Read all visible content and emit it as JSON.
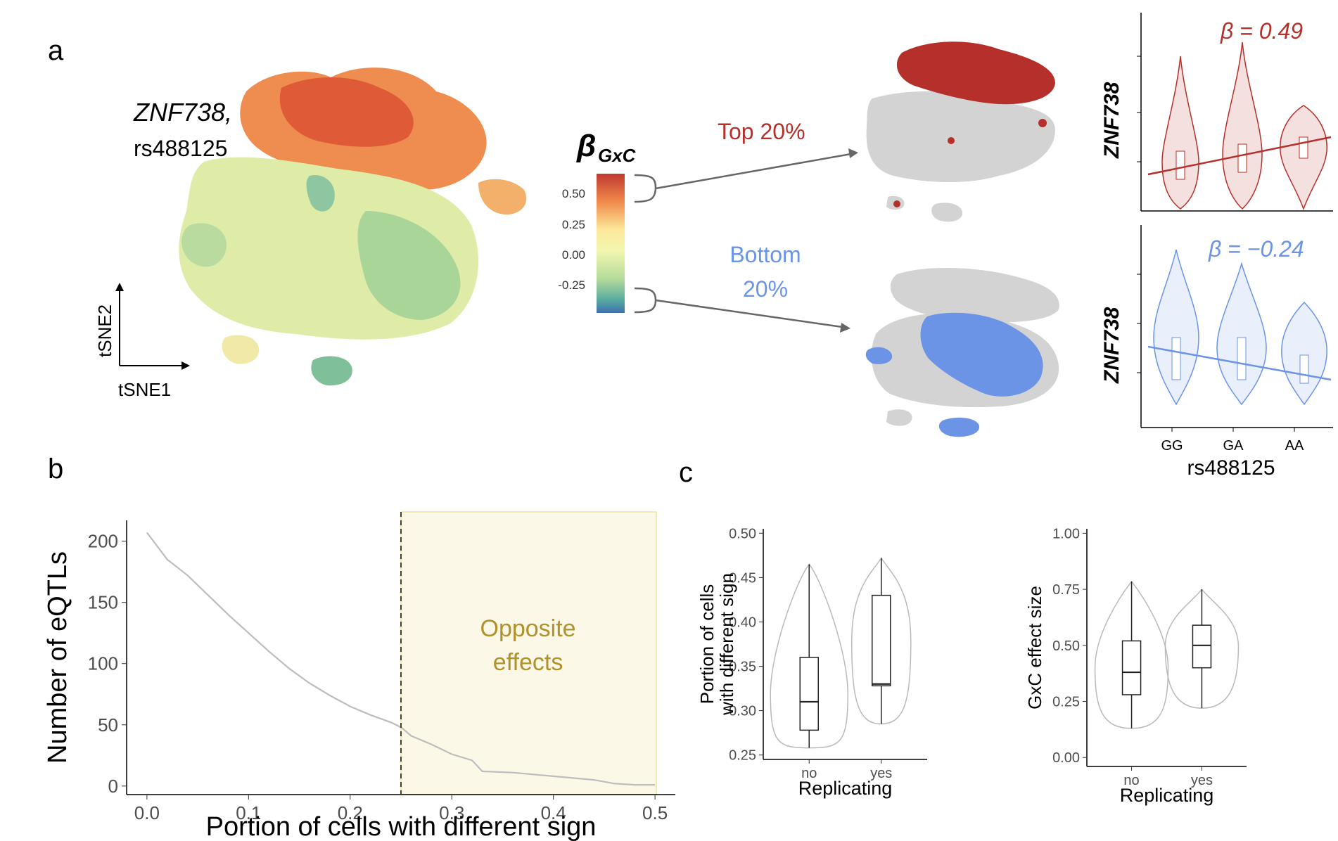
{
  "panel_labels": {
    "a": "a",
    "b": "b",
    "c": "c"
  },
  "panel_a": {
    "gene": "ZNF738,",
    "snp": "rs488125",
    "axis_x": "tSNE1",
    "axis_y": "tSNE2",
    "colorbar_symbol": "β",
    "colorbar_subscript": "GxC",
    "colorbar_ticks": [
      "0.50",
      "0.25",
      "0.00",
      "-0.25"
    ],
    "top_label": "Top 20%",
    "bottom_label_line1": "Bottom",
    "bottom_label_line2": "20%",
    "violin_top_ylabel": "ZNF738",
    "violin_bottom_ylabel": "ZNF738",
    "violin_top_beta": "β = 0.49",
    "violin_bottom_beta": "β = −0.24",
    "genotypes": [
      "GG",
      "GA",
      "AA"
    ],
    "violin_xlabel": "rs488125",
    "colors": {
      "top": "#b5302a",
      "bottom": "#6b93e6",
      "grey": "#cfcfcf"
    }
  },
  "panel_b": {
    "annotation_line1": "Opposite",
    "annotation_line2": "effects",
    "annotation_color": "#b0912a",
    "highlight_fill": "#fbf8e8"
  },
  "panel_c": {
    "left_ylabel_line1": "Portion of cells",
    "left_ylabel_line2": "with different sign",
    "right_ylabel": "GxC effect size",
    "xlabel": "Replicating"
  },
  "chart_data": [
    {
      "type": "line",
      "title": "",
      "xlabel": "Portion of cells with different sign",
      "ylabel": "Number of eQTLs",
      "xlim": [
        -0.02,
        0.52
      ],
      "ylim": [
        -7,
        217
      ],
      "xticks": [
        "0.0",
        "0.1",
        "0.2",
        "0.3",
        "0.4",
        "0.5"
      ],
      "yticks": [
        "0",
        "50",
        "100",
        "150",
        "200"
      ],
      "x": [
        0.0,
        0.02,
        0.04,
        0.06,
        0.08,
        0.1,
        0.12,
        0.14,
        0.16,
        0.18,
        0.2,
        0.22,
        0.24,
        0.25,
        0.26,
        0.28,
        0.3,
        0.32,
        0.33,
        0.36,
        0.4,
        0.44,
        0.46,
        0.48,
        0.5
      ],
      "y": [
        207,
        185,
        172,
        156,
        140,
        125,
        110,
        96,
        84,
        74,
        65,
        58,
        52,
        48,
        41,
        34,
        26,
        21,
        12,
        11,
        8,
        5,
        2,
        1,
        1
      ],
      "threshold": 0.25,
      "shaded_region": [
        0.25,
        0.5
      ],
      "grid": false
    },
    {
      "type": "box",
      "title": "",
      "xlabel": "Replicating",
      "ylabel": "Portion of cells with different sign",
      "categories": [
        "no",
        "yes"
      ],
      "yticks": [
        "0.25",
        "0.30",
        "0.35",
        "0.40",
        "0.45",
        "0.50"
      ],
      "ylim": [
        0.245,
        0.505
      ],
      "series": [
        {
          "name": "no",
          "min": 0.258,
          "q1": 0.278,
          "median": 0.31,
          "q3": 0.36,
          "max": 0.465
        },
        {
          "name": "yes",
          "min": 0.285,
          "q1": 0.328,
          "median": 0.33,
          "q3": 0.43,
          "max": 0.472
        }
      ]
    },
    {
      "type": "box",
      "title": "",
      "xlabel": "Replicating",
      "ylabel": "GxC effect size",
      "categories": [
        "no",
        "yes"
      ],
      "yticks": [
        "0.00",
        "0.25",
        "0.50",
        "0.75",
        "1.00"
      ],
      "ylim": [
        -0.04,
        1.02
      ],
      "series": [
        {
          "name": "no",
          "min": 0.13,
          "q1": 0.28,
          "median": 0.38,
          "q3": 0.52,
          "max": 0.785
        },
        {
          "name": "yes",
          "min": 0.22,
          "q1": 0.4,
          "median": 0.5,
          "q3": 0.59,
          "max": 0.75
        }
      ]
    }
  ]
}
